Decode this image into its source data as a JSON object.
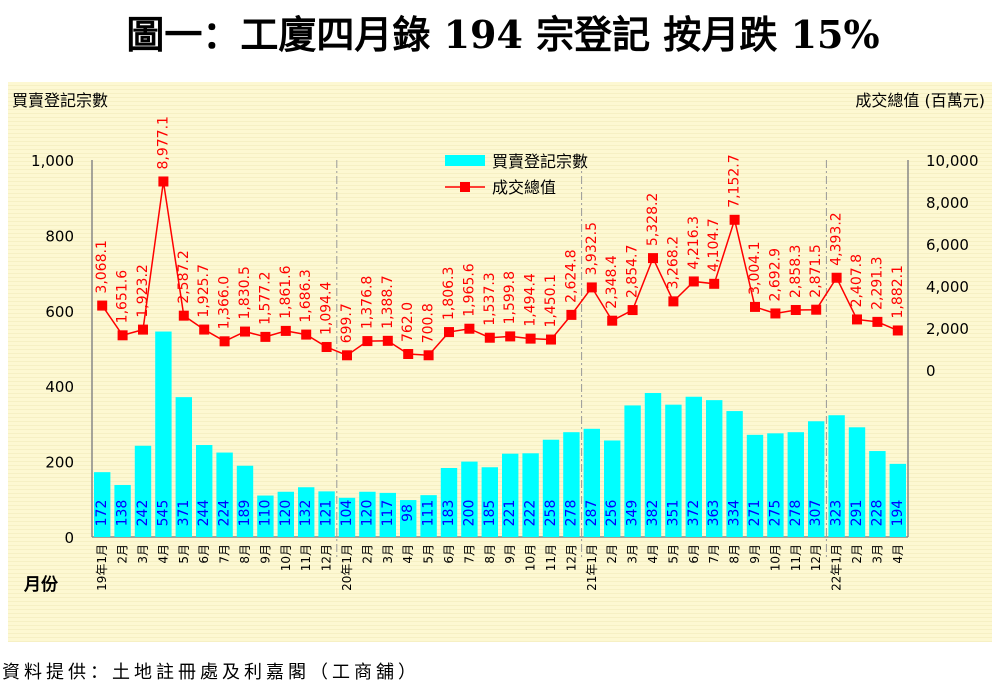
{
  "title": "圖一：工廈四月錄 194 宗登記  按月跌 15%",
  "source": "資料提供：土地註冊處及利嘉閣（工商舖）",
  "chart_data": {
    "type": "bar+line",
    "ylabel_left": "買賣登記宗數",
    "ylabel_right": "成交總值 (百萬元)",
    "xlabel": "月份",
    "ylim_left": [
      0,
      1000
    ],
    "ylim_right": [
      0,
      10000
    ],
    "left_ticks": [
      "0",
      "200",
      "400",
      "600",
      "800",
      "1,000"
    ],
    "right_ticks": [
      "0",
      "2,000",
      "4,000",
      "6,000",
      "8,000",
      "10,000"
    ],
    "legend": [
      "買賣登記宗數",
      "成交總值"
    ],
    "legend_position": "top-center",
    "colors": {
      "bar": "#00ffff",
      "line": "#ff0000",
      "bar_label": "#0000ff"
    },
    "categories": [
      "19年1月",
      "2月",
      "3月",
      "4月",
      "5月",
      "6月",
      "7月",
      "8月",
      "9月",
      "10月",
      "11月",
      "12月",
      "20年1月",
      "2月",
      "3月",
      "4月",
      "5月",
      "6月",
      "7月",
      "8月",
      "9月",
      "10月",
      "11月",
      "12月",
      "21年1月",
      "2月",
      "3月",
      "4月",
      "5月",
      "6月",
      "7月",
      "8月",
      "9月",
      "10月",
      "11月",
      "12月",
      "22年1月",
      "2月",
      "3月",
      "4月"
    ],
    "series": [
      {
        "name": "買賣登記宗數",
        "type": "bar",
        "values": [
          172,
          138,
          242,
          545,
          371,
          244,
          224,
          189,
          110,
          120,
          132,
          121,
          104,
          120,
          117,
          98,
          111,
          183,
          200,
          185,
          221,
          222,
          258,
          278,
          287,
          256,
          349,
          382,
          351,
          372,
          363,
          334,
          271,
          275,
          278,
          307,
          323,
          291,
          228,
          194
        ]
      },
      {
        "name": "成交總值",
        "type": "line",
        "values": [
          3068.1,
          1651.6,
          1923.2,
          8977.1,
          2587.2,
          1925.7,
          1366.0,
          1830.5,
          1577.2,
          1861.6,
          1686.3,
          1094.4,
          699.7,
          1376.8,
          1388.7,
          762.0,
          700.8,
          1806.3,
          1965.6,
          1537.3,
          1599.8,
          1494.4,
          1450.1,
          2624.8,
          3932.5,
          2348.4,
          2854.7,
          5328.2,
          3268.2,
          4216.3,
          4104.7,
          7152.7,
          3004.1,
          2692.9,
          2858.3,
          2871.5,
          4393.2,
          2407.8,
          2291.3,
          1882.1
        ]
      }
    ]
  }
}
